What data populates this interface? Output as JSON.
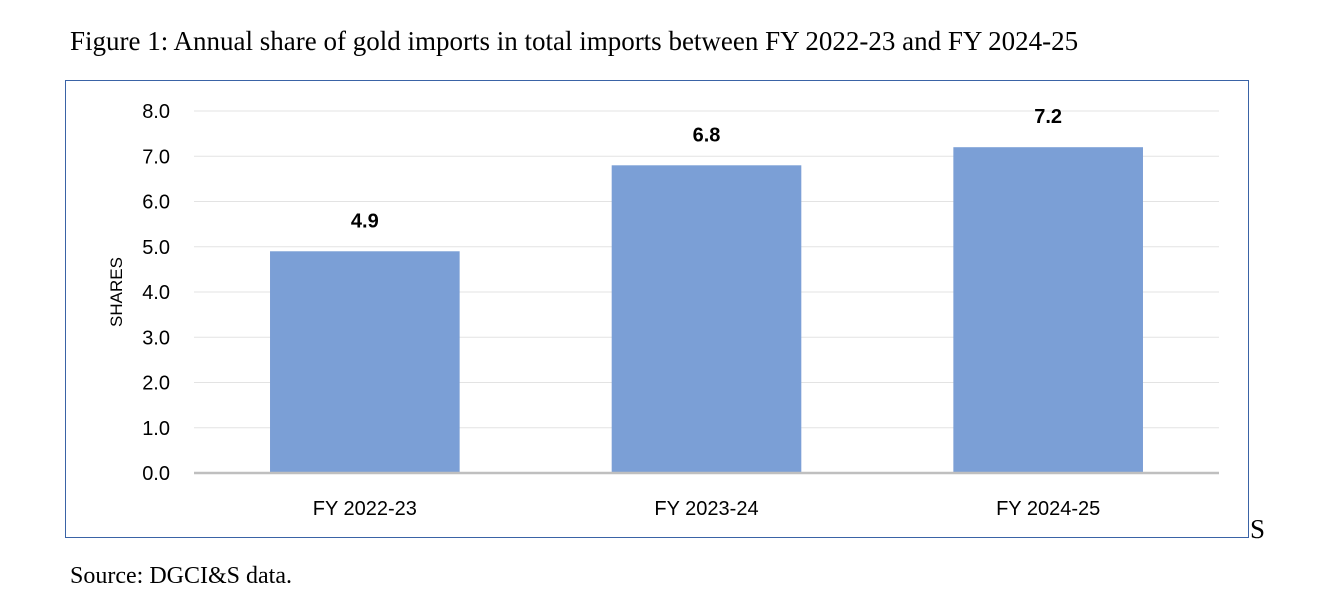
{
  "caption": "Figure 1: Annual share of gold imports in total imports between FY 2022-23 and FY 2024-25",
  "source": "Source: DGCI&S data.",
  "stray_text": "S",
  "colors": {
    "bar": "#7b9fd6",
    "frame": "#3a63a6",
    "grid": "#e3e3e3",
    "axis": "#bfbfbf"
  },
  "chart_data": {
    "type": "bar",
    "title": "",
    "xlabel": "",
    "ylabel": "SHARES",
    "categories": [
      "FY 2022-23",
      "FY 2023-24",
      "FY 2024-25"
    ],
    "values": [
      4.9,
      6.8,
      7.2
    ],
    "data_labels": [
      "4.9",
      "6.8",
      "7.2"
    ],
    "ylim": [
      0,
      8
    ],
    "yticks": [
      "0.0",
      "1.0",
      "2.0",
      "3.0",
      "4.0",
      "5.0",
      "6.0",
      "7.0",
      "8.0"
    ],
    "grid": true,
    "legend": "none"
  }
}
